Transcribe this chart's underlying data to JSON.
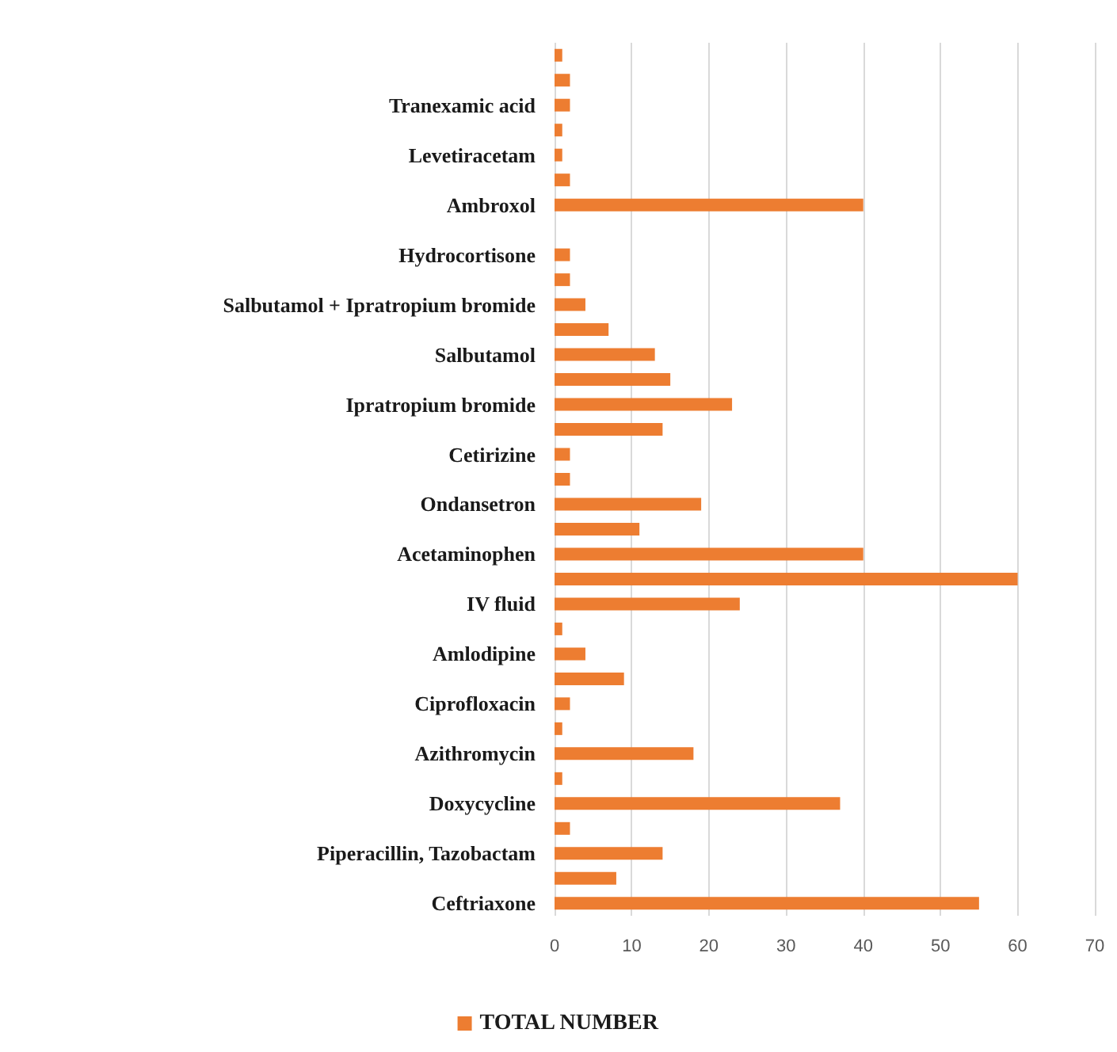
{
  "chart_data": {
    "type": "bar",
    "orientation": "horizontal",
    "categories": [
      null,
      null,
      "Tranexamic acid",
      null,
      "Levetiracetam",
      null,
      "Ambroxol",
      null,
      "Hydrocortisone",
      null,
      "Salbutamol + Ipratropium bromide",
      null,
      "Salbutamol",
      null,
      "Ipratropium bromide",
      null,
      "Cetirizine",
      null,
      "Ondansetron",
      null,
      "Acetaminophen",
      null,
      "IV fluid",
      null,
      "Amlodipine",
      null,
      "Ciprofloxacin",
      null,
      "Azithromycin",
      null,
      "Doxycycline",
      null,
      "Piperacillin, Tazobactam",
      null,
      "Ceftriaxone"
    ],
    "series": [
      {
        "name": "TOTAL NUMBER",
        "color": "#ed7d31",
        "values": [
          1,
          2,
          2,
          1,
          1,
          2,
          40,
          null,
          2,
          2,
          4,
          7,
          13,
          15,
          23,
          14,
          2,
          2,
          19,
          11,
          40,
          60,
          24,
          1,
          4,
          9,
          2,
          1,
          18,
          1,
          37,
          2,
          14,
          8,
          55
        ]
      }
    ],
    "xlim": [
      0,
      70
    ],
    "xticks": [
      0,
      10,
      20,
      30,
      40,
      50,
      60,
      70
    ],
    "grid": "x",
    "legend": "bottom"
  }
}
